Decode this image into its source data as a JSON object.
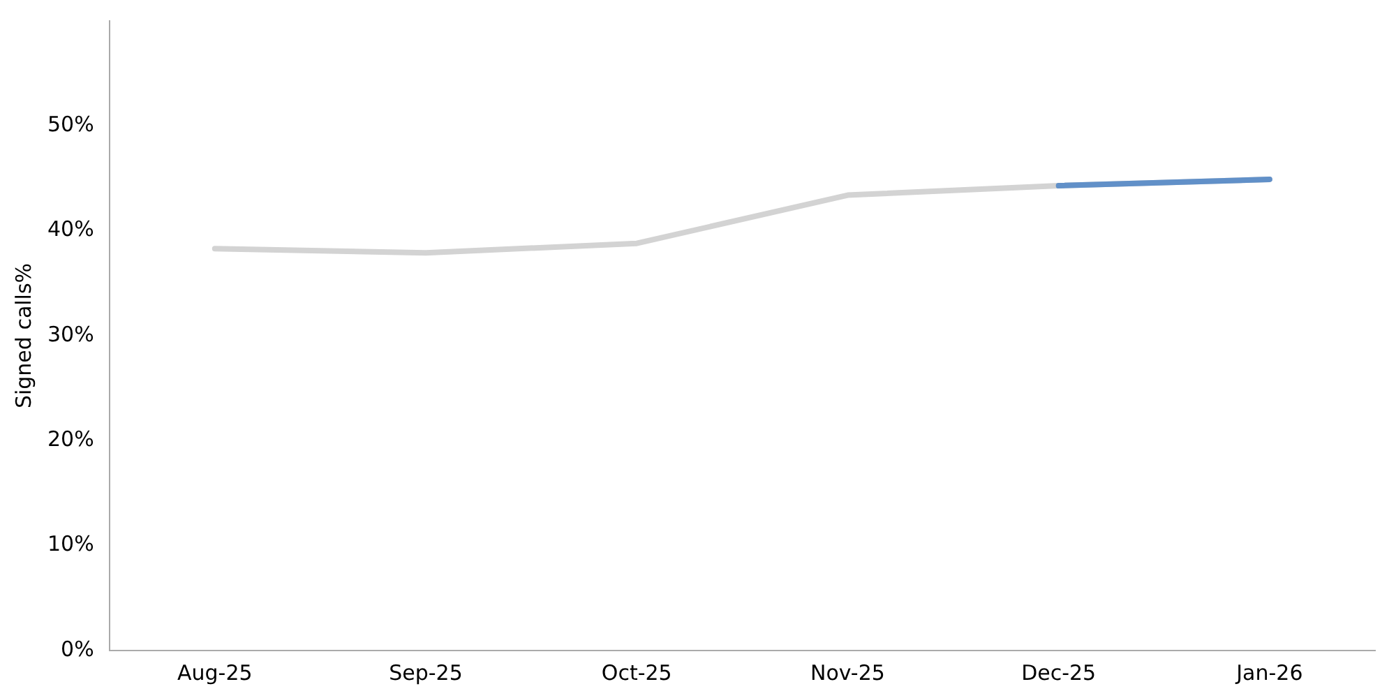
{
  "chart_data": {
    "type": "line",
    "ylabel": "Signed calls%",
    "categories": [
      "Aug-25",
      "Sep-25",
      "Oct-25",
      "Nov-25",
      "Dec-25",
      "Jan-26"
    ],
    "series": [
      {
        "color": "#d3d3d3",
        "values": [
          38.3,
          37.9,
          38.8,
          43.4,
          44.3,
          44.9
        ]
      },
      {
        "color": "#6190c8",
        "values": [
          null,
          null,
          null,
          null,
          44.3,
          44.9
        ]
      }
    ],
    "ylim": [
      0,
      60
    ],
    "yticks": [
      {
        "value": 0,
        "label": "0%"
      },
      {
        "value": 10,
        "label": "10%"
      },
      {
        "value": 20,
        "label": "20%"
      },
      {
        "value": 30,
        "label": "30%"
      },
      {
        "value": 40,
        "label": "40%"
      },
      {
        "value": 50,
        "label": "50%"
      }
    ],
    "grid": false,
    "legend": false,
    "marker": "none",
    "line_style": "solid"
  }
}
